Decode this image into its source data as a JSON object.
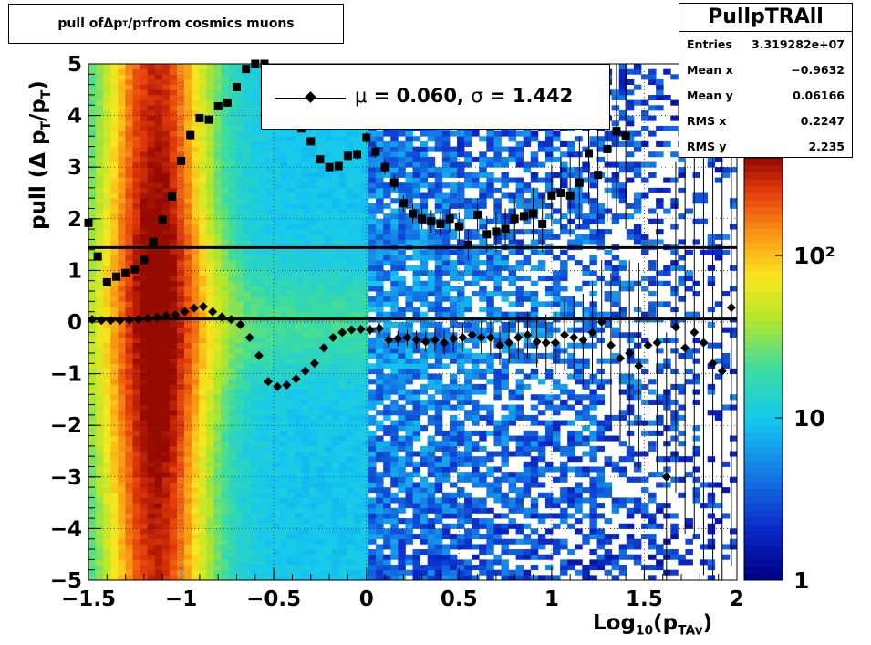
{
  "title_box": {
    "prefix": "pull of ",
    "delta": "Δ",
    "p": " p",
    "sub_t": "T",
    "slash": "/p",
    "sub_t2": "T",
    "suffix": " from cosmics muons"
  },
  "stats": {
    "name": "PullpTRAll",
    "rows": [
      {
        "label": "Entries",
        "value": "3.319282e+07"
      },
      {
        "label": "Mean x",
        "value": "−0.9632"
      },
      {
        "label": "Mean y",
        "value": "0.06166"
      },
      {
        "label": "RMS x",
        "value": "0.2247"
      },
      {
        "label": "RMS y",
        "value": "2.235"
      }
    ]
  },
  "legend": {
    "mu_sym": "μ",
    "mu_text": " =  0.060, ",
    "sigma_sym": "σ",
    "sigma_text": " =   1.442"
  },
  "axis_titles": {
    "y_pre": "pull (Δ p",
    "y_sub1": "T",
    "y_mid": "/p",
    "y_sub2": "T",
    "y_post": ")",
    "x_pre": "Log",
    "x_sub1": "10",
    "x_mid": "(p",
    "x_sub2": "TAv",
    "x_post": ")"
  },
  "chart_data": {
    "type": "heatmap",
    "x_range": [
      -1.5,
      2.0
    ],
    "y_range": [
      -5,
      5
    ],
    "x_ticks": [
      "−1.5",
      "−1",
      "−0.5",
      "0",
      "0.5",
      "1",
      "1.5",
      "2"
    ],
    "x_tick_values": [
      -1.5,
      -1,
      -0.5,
      0,
      0.5,
      1,
      1.5,
      2
    ],
    "y_ticks": [
      "−5",
      "−4",
      "−3",
      "−2",
      "−1",
      "0",
      "1",
      "2",
      "3",
      "4",
      "5"
    ],
    "y_tick_values": [
      -5,
      -4,
      -3,
      -2,
      -1,
      0,
      1,
      2,
      3,
      4,
      5
    ],
    "colorbar_ticks": [
      "1",
      "10",
      "10²"
    ],
    "colorbar_tick_values": [
      1,
      10,
      100
    ],
    "colorbar_range": [
      1,
      400
    ],
    "grid": true,
    "log_z": true,
    "mean_points": {
      "x": [
        -1.48,
        -1.43,
        -1.38,
        -1.33,
        -1.28,
        -1.23,
        -1.18,
        -1.13,
        -1.08,
        -1.03,
        -0.98,
        -0.93,
        -0.88,
        -0.83,
        -0.78,
        -0.73,
        -0.68,
        -0.63,
        -0.58,
        -0.53,
        -0.48,
        -0.43,
        -0.38,
        -0.33,
        -0.28,
        -0.23,
        -0.18,
        -0.13,
        -0.08,
        -0.03,
        0.02,
        0.07,
        0.12,
        0.17,
        0.22,
        0.27,
        0.32,
        0.37,
        0.42,
        0.47,
        0.52,
        0.57,
        0.62,
        0.67,
        0.72,
        0.77,
        0.82,
        0.87,
        0.92,
        0.97,
        1.02,
        1.07,
        1.12,
        1.17,
        1.22,
        1.27,
        1.32,
        1.37,
        1.42,
        1.47,
        1.52,
        1.57,
        1.62,
        1.67,
        1.72,
        1.77,
        1.82,
        1.87,
        1.92,
        1.97
      ],
      "y": [
        0.05,
        0.03,
        0.03,
        0.03,
        0.04,
        0.05,
        0.07,
        0.09,
        0.12,
        0.14,
        0.2,
        0.27,
        0.3,
        0.2,
        0.1,
        0.05,
        -0.05,
        -0.3,
        -0.65,
        -1.15,
        -1.25,
        -1.22,
        -1.1,
        -0.95,
        -0.8,
        -0.5,
        -0.3,
        -0.2,
        -0.15,
        -0.14,
        -0.15,
        -0.12,
        -0.35,
        -0.32,
        -0.3,
        -0.35,
        -0.38,
        -0.35,
        -0.4,
        -0.32,
        -0.3,
        -0.25,
        -0.3,
        -0.3,
        -0.45,
        -0.4,
        -0.3,
        -0.25,
        -0.38,
        -0.4,
        -0.4,
        -0.25,
        -0.3,
        -0.35,
        -0.2,
        0.0,
        -0.45,
        -0.7,
        -0.6,
        -0.85,
        -0.45,
        -0.4,
        -3.0,
        -0.1,
        -0.5,
        -0.2,
        -0.4,
        -0.8,
        -0.95,
        0.28
      ],
      "err": [
        0.02,
        0.02,
        0.02,
        0.02,
        0.02,
        0.02,
        0.02,
        0.02,
        0.02,
        0.02,
        0.02,
        0.02,
        0.02,
        0.02,
        0.02,
        0.02,
        0.02,
        0.03,
        0.03,
        0.04,
        0.04,
        0.04,
        0.05,
        0.05,
        0.06,
        0.06,
        0.07,
        0.08,
        0.08,
        0.09,
        0.1,
        0.12,
        0.14,
        0.15,
        0.16,
        0.18,
        0.2,
        0.22,
        0.24,
        0.26,
        0.28,
        0.3,
        0.32,
        0.35,
        0.38,
        0.4,
        0.42,
        0.45,
        0.5,
        0.55,
        0.6,
        0.7,
        0.8,
        0.9,
        1.0,
        1.2,
        1.4,
        1.6,
        1.8,
        2.0,
        2.2,
        2.5,
        2.8,
        3.2,
        3.6,
        4.0,
        4.5,
        5.0,
        5.0,
        5.0
      ]
    },
    "sigma_points": {
      "x": [
        -1.5,
        -1.45,
        -1.4,
        -1.35,
        -1.3,
        -1.25,
        -1.2,
        -1.15,
        -1.1,
        -1.05,
        -1.0,
        -0.95,
        -0.9,
        -0.85,
        -0.8,
        -0.75,
        -0.7,
        -0.65,
        -0.6,
        -0.55,
        -0.5,
        -0.45,
        -0.4,
        -0.35,
        -0.3,
        -0.25,
        -0.2,
        -0.15,
        -0.1,
        -0.05,
        0.0,
        0.05,
        0.1,
        0.15,
        0.2,
        0.25,
        0.3,
        0.35,
        0.4,
        0.45,
        0.5,
        0.55,
        0.6,
        0.65,
        0.7,
        0.75,
        0.8,
        0.85,
        0.9,
        0.95,
        1.0,
        1.05,
        1.1,
        1.15,
        1.2,
        1.25,
        1.3,
        1.35,
        1.4
      ],
      "y": [
        1.92,
        1.27,
        0.77,
        0.88,
        0.95,
        1.02,
        1.2,
        1.55,
        1.98,
        2.43,
        3.12,
        3.62,
        3.95,
        3.92,
        4.18,
        4.25,
        4.55,
        4.9,
        5.0,
        5.0,
        4.8,
        4.6,
        4.2,
        3.75,
        3.5,
        3.15,
        3.0,
        3.02,
        3.22,
        3.25,
        3.57,
        3.3,
        3.0,
        2.7,
        2.3,
        2.1,
        2.0,
        1.95,
        1.9,
        2.0,
        1.85,
        1.5,
        2.08,
        1.7,
        1.75,
        1.8,
        2.0,
        2.05,
        2.1,
        1.9,
        2.45,
        2.5,
        2.45,
        2.7,
        3.27,
        2.85,
        3.35,
        3.7,
        3.6
      ],
      "err": [
        0.02,
        0.02,
        0.02,
        0.02,
        0.02,
        0.02,
        0.02,
        0.02,
        0.02,
        0.02,
        0.02,
        0.02,
        0.02,
        0.02,
        0.02,
        0.02,
        0.03,
        0.03,
        0.03,
        0.04,
        0.04,
        0.04,
        0.05,
        0.05,
        0.06,
        0.06,
        0.07,
        0.08,
        0.09,
        0.1,
        0.11,
        0.12,
        0.14,
        0.15,
        0.16,
        0.18,
        0.2,
        0.22,
        0.24,
        0.26,
        0.28,
        0.3,
        0.32,
        0.35,
        0.38,
        0.4,
        0.42,
        0.45,
        0.5,
        0.55,
        0.6,
        0.7,
        0.8,
        0.9,
        1.0,
        1.2,
        1.4,
        1.6,
        1.8
      ]
    },
    "lines": [
      {
        "y": 1.442
      },
      {
        "y": 0.06
      }
    ]
  }
}
